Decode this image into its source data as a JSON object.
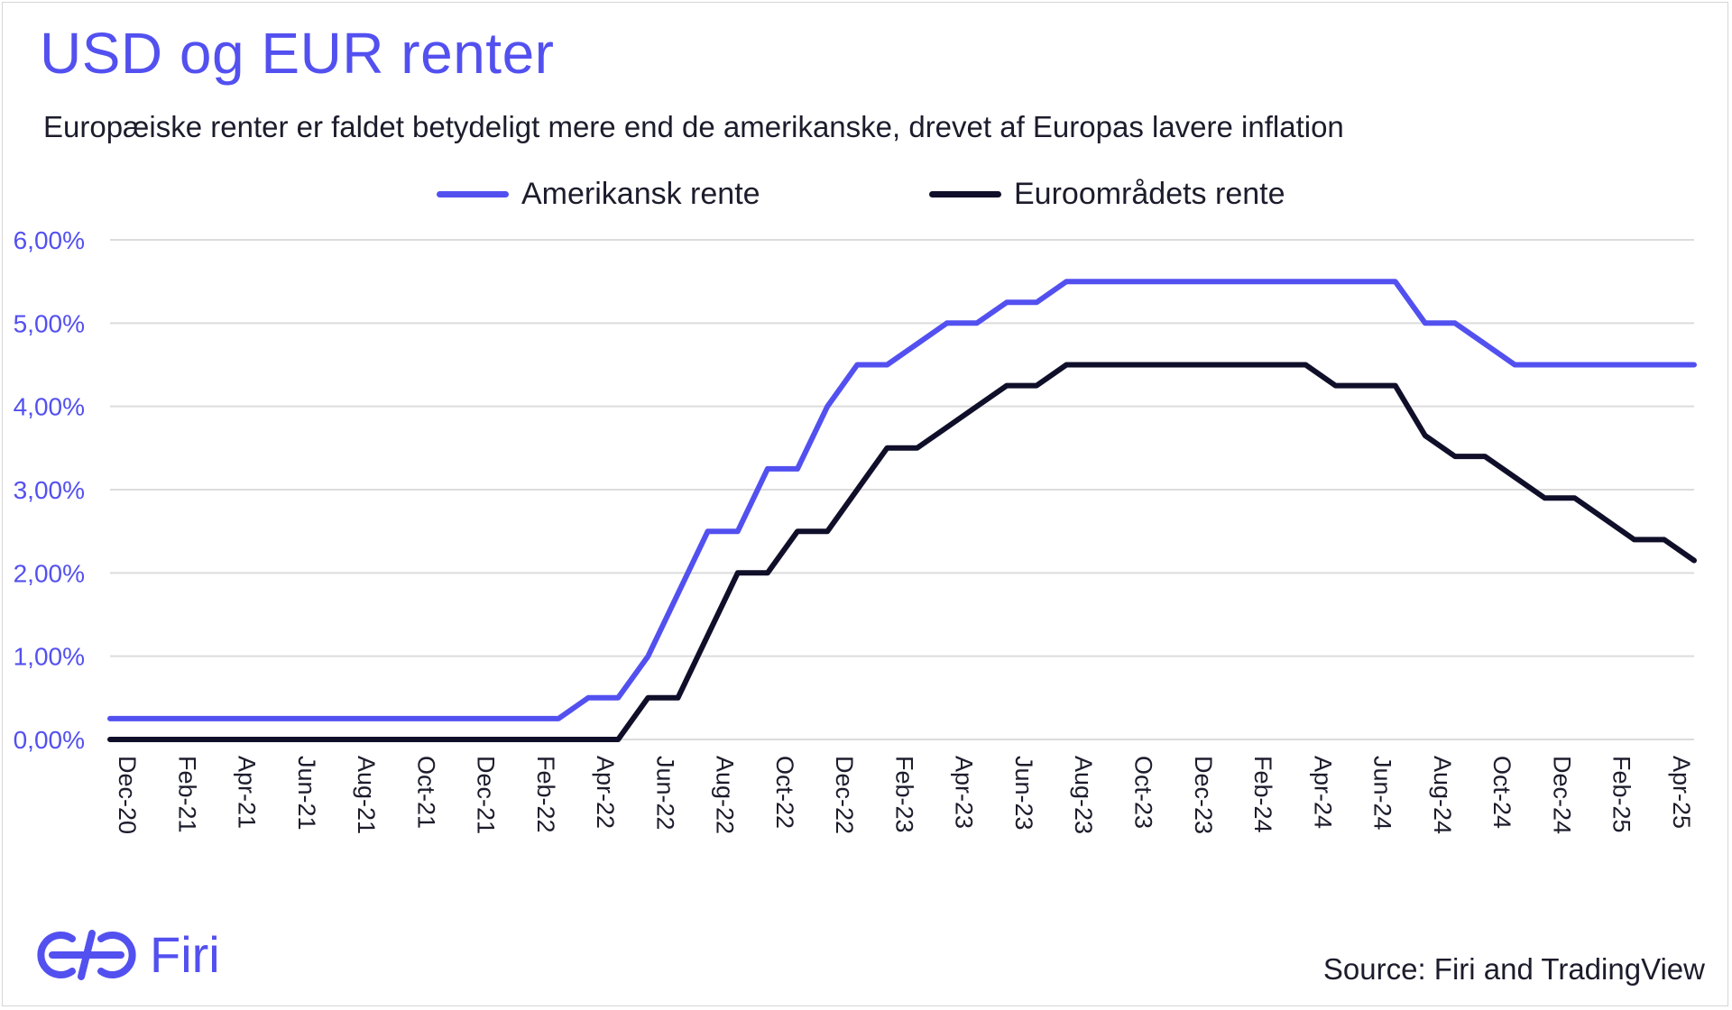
{
  "chart_data": {
    "type": "line",
    "title": "USD og EUR renter",
    "subtitle": "Europæiske renter er faldet betydeligt mere end de amerikanske, drevet af Europas lavere inflation",
    "xlabel": "",
    "ylabel": "",
    "ylim": [
      0,
      6
    ],
    "yticks": [
      0,
      1,
      2,
      3,
      4,
      5,
      6
    ],
    "ytick_labels": [
      "0,00%",
      "1,00%",
      "2,00%",
      "3,00%",
      "4,00%",
      "5,00%",
      "6,00%"
    ],
    "x_month_range": [
      0,
      53
    ],
    "xtick_labels": [
      "Dec-20",
      "Feb-21",
      "Apr-21",
      "Jun-21",
      "Aug-21",
      "Oct-21",
      "Dec-21",
      "Feb-22",
      "Apr-22",
      "Jun-22",
      "Aug-22",
      "Oct-22",
      "Dec-22",
      "Feb-23",
      "Apr-23",
      "Jun-23",
      "Aug-23",
      "Oct-23",
      "Dec-23",
      "Feb-24",
      "Apr-24",
      "Jun-24",
      "Aug-24",
      "Oct-24",
      "Dec-24",
      "Feb-25",
      "Apr-25"
    ],
    "grid": true,
    "legend_position": "top-center",
    "series": [
      {
        "name": "Amerikansk rente",
        "color": "#5350f0",
        "x": [
          0,
          15,
          16,
          17,
          18,
          19,
          20,
          21,
          22,
          23,
          24,
          25,
          26,
          27,
          28,
          29,
          30,
          31,
          32,
          33,
          34,
          43,
          44,
          45,
          46,
          47,
          53
        ],
        "values": [
          0.25,
          0.25,
          0.5,
          0.5,
          1.0,
          1.75,
          2.5,
          2.5,
          3.25,
          3.25,
          4.0,
          4.5,
          4.5,
          4.75,
          5.0,
          5.0,
          5.25,
          5.25,
          5.5,
          5.5,
          5.5,
          5.5,
          5.0,
          5.0,
          4.75,
          4.5,
          4.5
        ]
      },
      {
        "name": "Euroområdets rente",
        "color": "#0f0f2a",
        "x": [
          0,
          17,
          18,
          19,
          20,
          21,
          22,
          23,
          24,
          25,
          26,
          27,
          28,
          29,
          30,
          31,
          32,
          33,
          40,
          41,
          42,
          43,
          44,
          45,
          46,
          47,
          48,
          49,
          50,
          51,
          52,
          53
        ],
        "values": [
          0.0,
          0.0,
          0.5,
          0.5,
          1.25,
          2.0,
          2.0,
          2.5,
          2.5,
          3.0,
          3.5,
          3.5,
          3.75,
          4.0,
          4.25,
          4.25,
          4.5,
          4.5,
          4.5,
          4.25,
          4.25,
          4.25,
          3.65,
          3.4,
          3.4,
          3.15,
          2.9,
          2.9,
          2.65,
          2.4,
          2.4,
          2.15
        ]
      }
    ]
  },
  "branding": {
    "logo_text": "Firi",
    "source": "Source: Firi and TradingView"
  }
}
